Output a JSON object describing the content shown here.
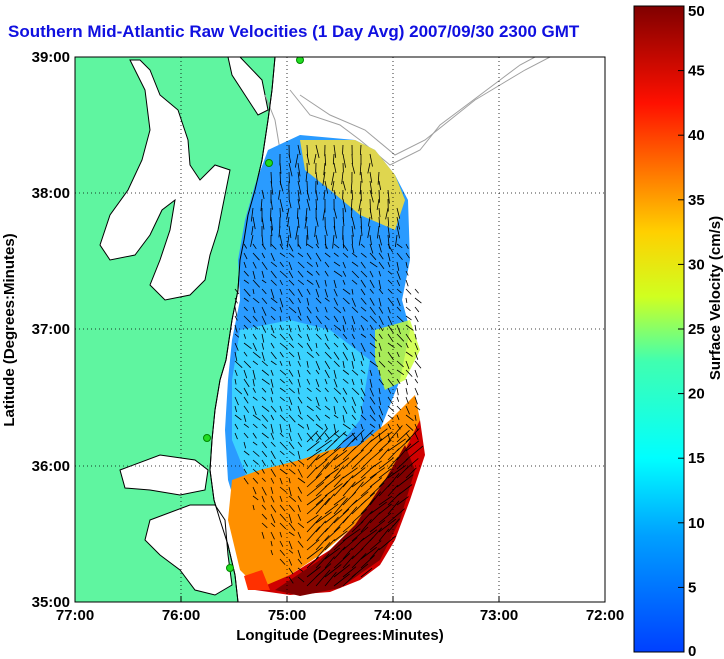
{
  "title": "Southern Mid-Atlantic Raw Velocities (1 Day Avg) 2007/09/30 2300 GMT",
  "map": {
    "xlabel": "Longitude (Degrees:Minutes)",
    "ylabel": "Latitude (Degrees:Minutes)",
    "x_ticks": [
      "77:00",
      "76:00",
      "75:00",
      "74:00",
      "73:00",
      "72:00"
    ],
    "y_ticks": [
      "39:00",
      "38:00",
      "37:00",
      "36:00",
      "35:00"
    ],
    "xlim": [
      "77:00 W",
      "72:00 W"
    ],
    "ylim": [
      "35:00 N",
      "39:00 N"
    ],
    "grid": "dotted",
    "land_color": "#5ff5a0",
    "coast_color": "#000000",
    "bathymetry_color": "#a0a0a0",
    "station_marker_color": "#22dd22"
  },
  "colorbar": {
    "label": "Surface Velocity (cm/s)",
    "ticks": [
      "0",
      "5",
      "10",
      "15",
      "20",
      "25",
      "30",
      "35",
      "40",
      "45",
      "50"
    ],
    "min": 0,
    "max": 50,
    "colormap": "jet"
  }
}
